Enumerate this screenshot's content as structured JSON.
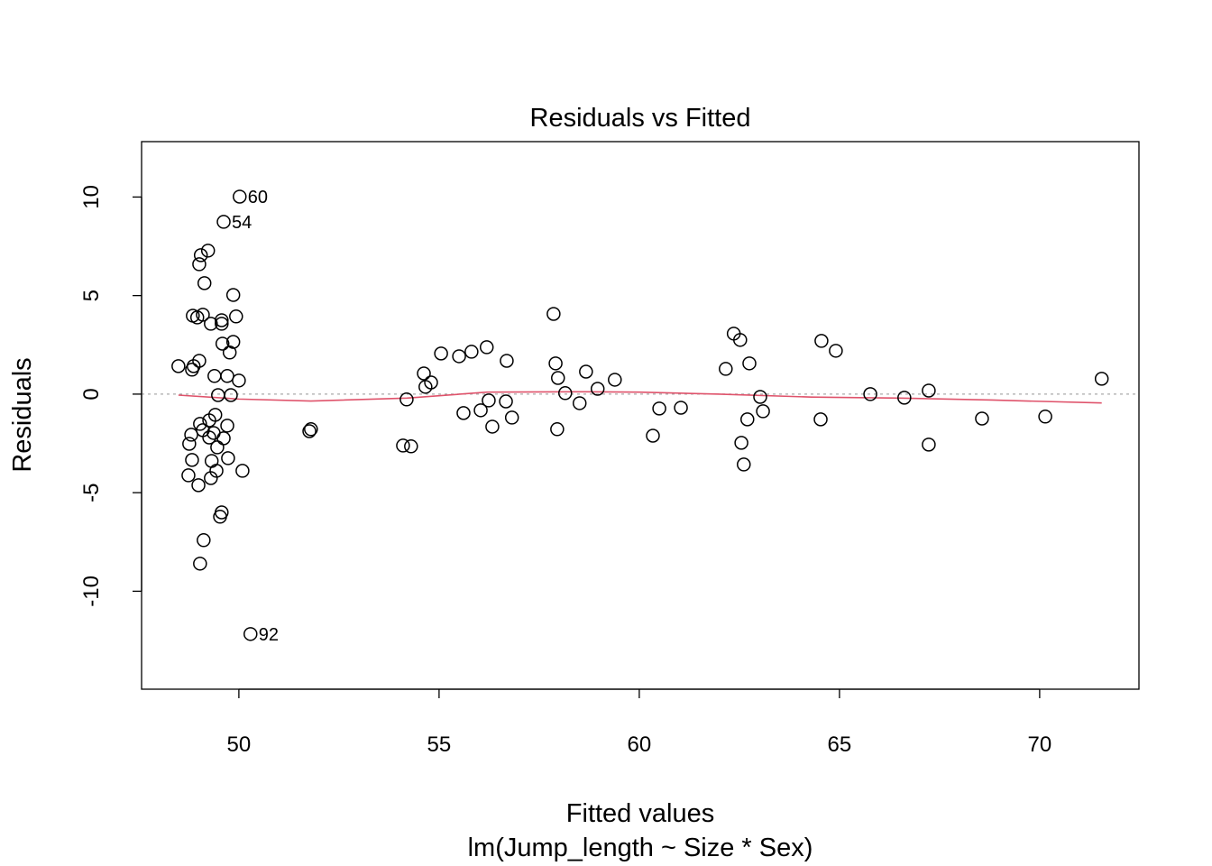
{
  "chart_data": {
    "type": "scatter",
    "title": "Residuals vs Fitted",
    "xlabel": "Fitted values",
    "subtitle": "lm(Jump_length ~ Size * Sex)",
    "ylabel": "Residuals",
    "xlim": [
      47.57,
      72.48
    ],
    "ylim": [
      -14.97,
      12.81
    ],
    "xticks": [
      50,
      55,
      60,
      65,
      70
    ],
    "yticks": [
      -10,
      -5,
      0,
      5,
      10
    ],
    "xtick_labels": [
      "50",
      "55",
      "60",
      "65",
      "70"
    ],
    "ytick_labels": [
      "-10",
      "-5",
      "0",
      "5",
      "10"
    ],
    "grid": false,
    "reference_line": {
      "y": 0,
      "style": "dotted",
      "color": "#aaaaaa"
    },
    "smooth_color": "#df536b",
    "point_color": "#000000",
    "points": [
      [
        50.02,
        10.02
      ],
      [
        49.62,
        8.74
      ],
      [
        49.23,
        7.28
      ],
      [
        49.05,
        7.05
      ],
      [
        49.01,
        6.59
      ],
      [
        49.14,
        5.63
      ],
      [
        49.86,
        5.03
      ],
      [
        48.85,
        3.98
      ],
      [
        48.96,
        3.89
      ],
      [
        49.1,
        4.03
      ],
      [
        49.3,
        3.57
      ],
      [
        49.57,
        3.75
      ],
      [
        49.57,
        3.57
      ],
      [
        49.93,
        3.94
      ],
      [
        49.59,
        2.56
      ],
      [
        49.86,
        2.65
      ],
      [
        49.77,
        2.11
      ],
      [
        49.01,
        1.69
      ],
      [
        48.49,
        1.42
      ],
      [
        48.83,
        1.24
      ],
      [
        48.87,
        1.42
      ],
      [
        49.39,
        0.92
      ],
      [
        49.71,
        0.92
      ],
      [
        50.0,
        0.69
      ],
      [
        49.48,
        -0.05
      ],
      [
        49.8,
        -0.05
      ],
      [
        49.41,
        -1.05
      ],
      [
        49.71,
        -1.6
      ],
      [
        49.03,
        -1.51
      ],
      [
        49.26,
        -1.33
      ],
      [
        49.1,
        -1.83
      ],
      [
        48.81,
        -2.06
      ],
      [
        49.37,
        -1.97
      ],
      [
        49.26,
        -2.2
      ],
      [
        49.62,
        -2.24
      ],
      [
        48.76,
        -2.52
      ],
      [
        49.46,
        -2.7
      ],
      [
        49.32,
        -3.39
      ],
      [
        48.83,
        -3.34
      ],
      [
        49.73,
        -3.25
      ],
      [
        49.44,
        -3.89
      ],
      [
        49.3,
        -4.26
      ],
      [
        48.74,
        -4.12
      ],
      [
        50.09,
        -3.89
      ],
      [
        48.99,
        -4.62
      ],
      [
        49.57,
        -6.0
      ],
      [
        49.53,
        -6.22
      ],
      [
        49.12,
        -7.41
      ],
      [
        49.03,
        -8.6
      ],
      [
        50.29,
        -12.17
      ],
      [
        51.8,
        -1.78
      ],
      [
        51.76,
        -1.88
      ],
      [
        54.19,
        -0.27
      ],
      [
        54.1,
        -2.61
      ],
      [
        54.3,
        -2.65
      ],
      [
        54.62,
        1.05
      ],
      [
        54.8,
        0.59
      ],
      [
        54.66,
        0.37
      ],
      [
        55.05,
        2.06
      ],
      [
        55.5,
        1.92
      ],
      [
        55.81,
        2.15
      ],
      [
        56.19,
        2.38
      ],
      [
        55.61,
        -0.96
      ],
      [
        56.04,
        -0.82
      ],
      [
        56.24,
        -0.32
      ],
      [
        56.33,
        -1.65
      ],
      [
        56.69,
        1.69
      ],
      [
        56.67,
        -0.37
      ],
      [
        56.82,
        -1.19
      ],
      [
        57.86,
        4.07
      ],
      [
        57.91,
        1.56
      ],
      [
        57.97,
        0.82
      ],
      [
        58.15,
        0.05
      ],
      [
        57.95,
        -1.78
      ],
      [
        58.51,
        -0.46
      ],
      [
        58.67,
        1.14
      ],
      [
        58.96,
        0.27
      ],
      [
        59.39,
        0.73
      ],
      [
        60.34,
        -2.11
      ],
      [
        60.5,
        -0.73
      ],
      [
        61.04,
        -0.69
      ],
      [
        62.16,
        1.28
      ],
      [
        62.36,
        3.07
      ],
      [
        62.52,
        2.75
      ],
      [
        62.75,
        1.56
      ],
      [
        63.02,
        -0.14
      ],
      [
        62.7,
        -1.28
      ],
      [
        63.09,
        -0.87
      ],
      [
        62.55,
        -2.47
      ],
      [
        62.61,
        -3.57
      ],
      [
        64.55,
        2.7
      ],
      [
        64.91,
        2.2
      ],
      [
        64.53,
        -1.28
      ],
      [
        65.77,
        0.0
      ],
      [
        66.62,
        -0.18
      ],
      [
        67.23,
        0.18
      ],
      [
        67.23,
        -2.56
      ],
      [
        68.56,
        -1.24
      ],
      [
        70.14,
        -1.14
      ],
      [
        71.55,
        0.78
      ]
    ],
    "labeled_points": [
      {
        "label": "60",
        "x": 50.02,
        "y": 10.02
      },
      {
        "label": "54",
        "x": 49.62,
        "y": 8.74
      },
      {
        "label": "92",
        "x": 50.29,
        "y": -12.17
      }
    ],
    "smooth_line": [
      [
        48.49,
        -0.05
      ],
      [
        50.0,
        -0.25
      ],
      [
        51.8,
        -0.35
      ],
      [
        54.2,
        -0.2
      ],
      [
        56.2,
        0.1
      ],
      [
        58.7,
        0.12
      ],
      [
        60.0,
        0.1
      ],
      [
        62.0,
        0.0
      ],
      [
        64.3,
        -0.15
      ],
      [
        66.5,
        -0.2
      ],
      [
        68.8,
        -0.3
      ],
      [
        71.55,
        -0.45
      ]
    ]
  }
}
